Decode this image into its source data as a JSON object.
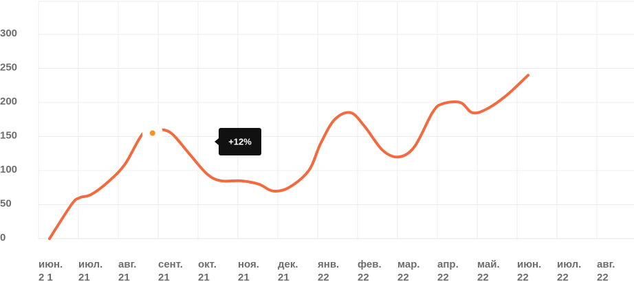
{
  "chart_data": {
    "type": "line",
    "title": "",
    "xlabel": "",
    "ylabel": "",
    "ylim": [
      0,
      300
    ],
    "yticks": [
      0,
      50,
      100,
      150,
      200,
      250,
      300
    ],
    "grid": true,
    "categories": [
      [
        "июн.",
        "2 1"
      ],
      [
        "июл.",
        "21"
      ],
      [
        "авг.",
        "21"
      ],
      [
        "сент.",
        "21"
      ],
      [
        "окт.",
        "21"
      ],
      [
        "ноя.",
        "21"
      ],
      [
        "дек.",
        "21"
      ],
      [
        "янв.",
        "22"
      ],
      [
        "фев.",
        "22"
      ],
      [
        "мар.",
        "22"
      ],
      [
        "апр.",
        "22"
      ],
      [
        "май.",
        "22"
      ],
      [
        "июн.",
        "22"
      ],
      [
        "июл.",
        "22"
      ],
      [
        "авг.",
        "22"
      ]
    ],
    "series": [
      {
        "color": "#f26a3d",
        "points": [
          [
            0.0,
            0
          ],
          [
            0.55,
            50
          ],
          [
            0.75,
            60
          ],
          [
            1.05,
            65
          ],
          [
            1.5,
            85
          ],
          [
            1.9,
            110
          ],
          [
            2.35,
            155
          ],
          [
            2.7,
            160
          ],
          [
            3.05,
            155
          ],
          [
            3.5,
            125
          ],
          [
            3.95,
            95
          ],
          [
            4.3,
            85
          ],
          [
            4.8,
            85
          ],
          [
            5.25,
            80
          ],
          [
            5.6,
            70
          ],
          [
            6.0,
            75
          ],
          [
            6.5,
            100
          ],
          [
            6.8,
            140
          ],
          [
            7.15,
            175
          ],
          [
            7.55,
            185
          ],
          [
            7.9,
            165
          ],
          [
            8.35,
            130
          ],
          [
            8.75,
            120
          ],
          [
            9.15,
            135
          ],
          [
            9.6,
            185
          ],
          [
            9.85,
            198
          ],
          [
            10.3,
            200
          ],
          [
            10.6,
            185
          ],
          [
            10.95,
            190
          ],
          [
            11.45,
            210
          ],
          [
            12.0,
            240
          ]
        ]
      }
    ],
    "highlight": {
      "x": 2.6,
      "y": 155,
      "label": "+12%",
      "color": "#f7931e"
    }
  }
}
